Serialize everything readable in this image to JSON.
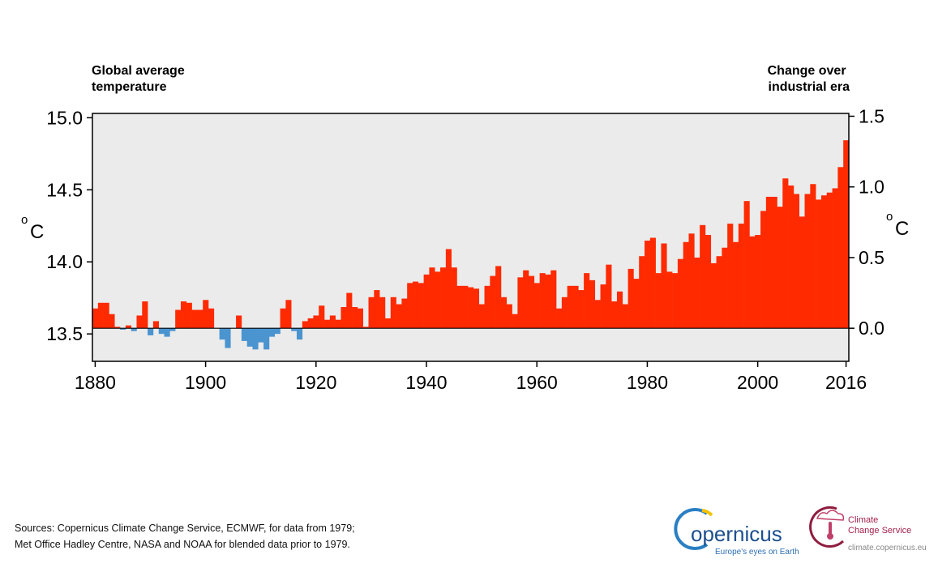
{
  "chart_data": {
    "type": "bar",
    "y_title": [
      "Global average",
      "temperature"
    ],
    "y2_title": [
      "Change over",
      "industrial era"
    ],
    "y_unit_mark": "o",
    "y_unit": "C",
    "y2_unit_mark": "o",
    "y2_unit": "C",
    "x": [
      1880,
      1881,
      1882,
      1883,
      1884,
      1885,
      1886,
      1887,
      1888,
      1889,
      1890,
      1891,
      1892,
      1893,
      1894,
      1895,
      1896,
      1897,
      1898,
      1899,
      1900,
      1901,
      1902,
      1903,
      1904,
      1905,
      1906,
      1907,
      1908,
      1909,
      1910,
      1911,
      1912,
      1913,
      1914,
      1915,
      1916,
      1917,
      1918,
      1919,
      1920,
      1921,
      1922,
      1923,
      1924,
      1925,
      1926,
      1927,
      1928,
      1929,
      1930,
      1931,
      1932,
      1933,
      1934,
      1935,
      1936,
      1937,
      1938,
      1939,
      1940,
      1941,
      1942,
      1943,
      1944,
      1945,
      1946,
      1947,
      1948,
      1949,
      1950,
      1951,
      1952,
      1953,
      1954,
      1955,
      1956,
      1957,
      1958,
      1959,
      1960,
      1961,
      1962,
      1963,
      1964,
      1965,
      1966,
      1967,
      1968,
      1969,
      1970,
      1971,
      1972,
      1973,
      1974,
      1975,
      1976,
      1977,
      1978,
      1979,
      1980,
      1981,
      1982,
      1983,
      1984,
      1985,
      1986,
      1987,
      1988,
      1989,
      1990,
      1991,
      1992,
      1993,
      1994,
      1995,
      1996,
      1997,
      1998,
      1999,
      2000,
      2001,
      2002,
      2003,
      2004,
      2005,
      2006,
      2007,
      2008,
      2009,
      2010,
      2011,
      2012,
      2013,
      2014,
      2015,
      2016
    ],
    "series": [
      {
        "axis": "y2",
        "color": "#ff2a00",
        "negative_color": "#4a94d0",
        "values": [
          0.14,
          0.18,
          0.18,
          0.1,
          0.01,
          -0.01,
          0.02,
          -0.02,
          0.09,
          0.19,
          -0.05,
          0.05,
          -0.04,
          -0.06,
          -0.02,
          0.13,
          0.19,
          0.18,
          0.13,
          0.13,
          0.2,
          0.14,
          0.0,
          -0.08,
          -0.14,
          0.0,
          0.09,
          -0.09,
          -0.13,
          -0.15,
          -0.1,
          -0.15,
          -0.06,
          -0.04,
          0.14,
          0.2,
          -0.02,
          -0.08,
          0.05,
          0.07,
          0.09,
          0.16,
          0.06,
          0.09,
          0.06,
          0.15,
          0.25,
          0.15,
          0.14,
          0.01,
          0.22,
          0.27,
          0.22,
          0.07,
          0.22,
          0.17,
          0.21,
          0.32,
          0.33,
          0.32,
          0.38,
          0.43,
          0.4,
          0.43,
          0.56,
          0.43,
          0.3,
          0.3,
          0.29,
          0.28,
          0.17,
          0.3,
          0.37,
          0.44,
          0.22,
          0.17,
          0.1,
          0.36,
          0.41,
          0.37,
          0.32,
          0.39,
          0.38,
          0.41,
          0.14,
          0.22,
          0.3,
          0.3,
          0.27,
          0.39,
          0.34,
          0.2,
          0.31,
          0.45,
          0.19,
          0.26,
          0.17,
          0.42,
          0.35,
          0.51,
          0.62,
          0.64,
          0.39,
          0.6,
          0.4,
          0.39,
          0.49,
          0.61,
          0.67,
          0.5,
          0.73,
          0.66,
          0.46,
          0.51,
          0.57,
          0.74,
          0.61,
          0.74,
          0.9,
          0.65,
          0.66,
          0.83,
          0.93,
          0.93,
          0.86,
          1.06,
          1.01,
          0.95,
          0.79,
          0.95,
          1.02,
          0.91,
          0.94,
          0.96,
          0.99,
          1.14,
          1.33
        ]
      }
    ],
    "xlim": [
      1879.5,
      2016.5
    ],
    "xticks": [
      1880,
      1900,
      1920,
      1940,
      1960,
      1980,
      2000,
      2016
    ],
    "ylim": [
      13.31,
      15.03
    ],
    "yticks": [
      13.5,
      {
        "value": 14,
        "label": "14.0"
      },
      14.5,
      {
        "value": 15,
        "label": "15.0"
      }
    ],
    "y2lim": [
      -0.234,
      1.52
    ],
    "y2ticks": [
      {
        "value": 0,
        "label": "0.0"
      },
      0.5,
      {
        "value": 1,
        "label": "1.0"
      },
      1.5
    ],
    "background": "#ebebeb"
  },
  "footer": {
    "sources": [
      "Sources: Copernicus Climate Change Service, ECMWF, for data from 1979;",
      "Met Office Hadley Centre, NASA and NOAA for blended data prior to 1979."
    ],
    "copernicus_logo": {
      "name": "opernicus",
      "tagline": "Europe's eyes on Earth"
    },
    "c3s_logo": {
      "lines": [
        "Climate",
        "Change Service"
      ],
      "url": "climate.copernicus.eu"
    }
  }
}
